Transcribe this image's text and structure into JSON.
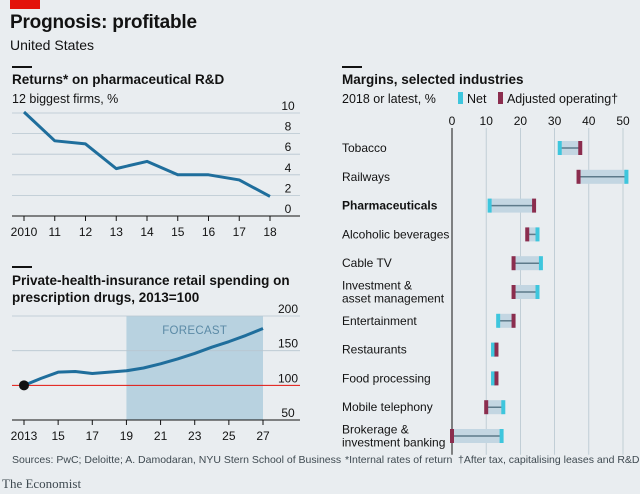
{
  "header": {
    "title": "Prognosis: profitable",
    "subtitle": "United States"
  },
  "colors": {
    "line": "#1f6e9c",
    "net": "#3ec6dd",
    "operating": "#8b2d4e",
    "forecast_shade": "#b8d2e0",
    "bar_bg": "#c3d6e2",
    "reference": "#e3120b",
    "accent_red": "#e3120b"
  },
  "chart_data": [
    {
      "type": "line",
      "title": "Returns* on pharmaceutical R&D",
      "subtitle": "12 biggest firms, %",
      "x": [
        "2010",
        "11",
        "12",
        "13",
        "14",
        "15",
        "16",
        "17",
        "18"
      ],
      "series": [
        {
          "values": [
            10.1,
            7.3,
            7.0,
            4.6,
            5.3,
            4.0,
            4.0,
            3.5,
            1.9
          ]
        }
      ],
      "yticks": [
        "0",
        "2",
        "4",
        "6",
        "8",
        "10"
      ],
      "ylim": [
        0,
        10
      ],
      "grid": true
    },
    {
      "type": "line",
      "title": "Private-health-insurance retail spending on prescription drugs, 2013=100",
      "x": [
        "2013",
        "15",
        "17",
        "19",
        "21",
        "23",
        "25",
        "27"
      ],
      "xnum": [
        2013,
        2015,
        2017,
        2019,
        2021,
        2023,
        2025,
        2027
      ],
      "series": [
        {
          "x": [
            2013,
            2014,
            2015,
            2016,
            2017,
            2018,
            2019,
            2020,
            2021,
            2022,
            2023,
            2024,
            2025,
            2026,
            2027
          ],
          "values": [
            100,
            110,
            119,
            120,
            117,
            119,
            121,
            125,
            131,
            138,
            146,
            155,
            163,
            172,
            182
          ]
        }
      ],
      "forecast_label": "FORECAST",
      "forecast_start": 2019,
      "yticks": [
        "50",
        "100",
        "150",
        "200"
      ],
      "ylim": [
        50,
        200
      ],
      "reference_line": 100,
      "grid": true
    },
    {
      "type": "bar",
      "title": "Margins, selected industries",
      "subtitle": "2018 or latest, %",
      "legend": {
        "net": "Net",
        "operating": "Adjusted operating†"
      },
      "xticks": [
        "0",
        "10",
        "20",
        "30",
        "40",
        "50"
      ],
      "xlim": [
        0,
        50
      ],
      "categories": [
        {
          "name": "Tobacco",
          "net": 31.5,
          "operating": 37.5,
          "bold": false
        },
        {
          "name": "Railways",
          "net": 51.0,
          "operating": 37.0,
          "bold": false
        },
        {
          "name": "Pharmaceuticals",
          "net": 11.0,
          "operating": 24.0,
          "bold": true
        },
        {
          "name": "Alcoholic beverages",
          "net": 25.0,
          "operating": 22.0,
          "bold": false
        },
        {
          "name": "Cable TV",
          "net": 26.0,
          "operating": 18.0,
          "bold": false
        },
        {
          "name": "Investment & asset management",
          "net": 25.0,
          "operating": 18.0,
          "bold": false
        },
        {
          "name": "Entertainment",
          "net": 13.5,
          "operating": 18.0,
          "bold": false
        },
        {
          "name": "Restaurants",
          "net": 12.0,
          "operating": 13.0,
          "bold": false
        },
        {
          "name": "Food processing",
          "net": 12.0,
          "operating": 13.0,
          "bold": false
        },
        {
          "name": "Mobile telephony",
          "net": 15.0,
          "operating": 10.0,
          "bold": false
        },
        {
          "name": "Brokerage & investment banking",
          "net": 14.5,
          "operating": 0.0,
          "bold": false
        }
      ]
    }
  ],
  "footer": {
    "source": "Sources: PwC; Deloitte; A. Damodaran, NYU Stern School of Business",
    "note1": "*Internal rates of return",
    "note2": "†After tax, capitalising leases and R&D",
    "brand": "The Economist"
  }
}
